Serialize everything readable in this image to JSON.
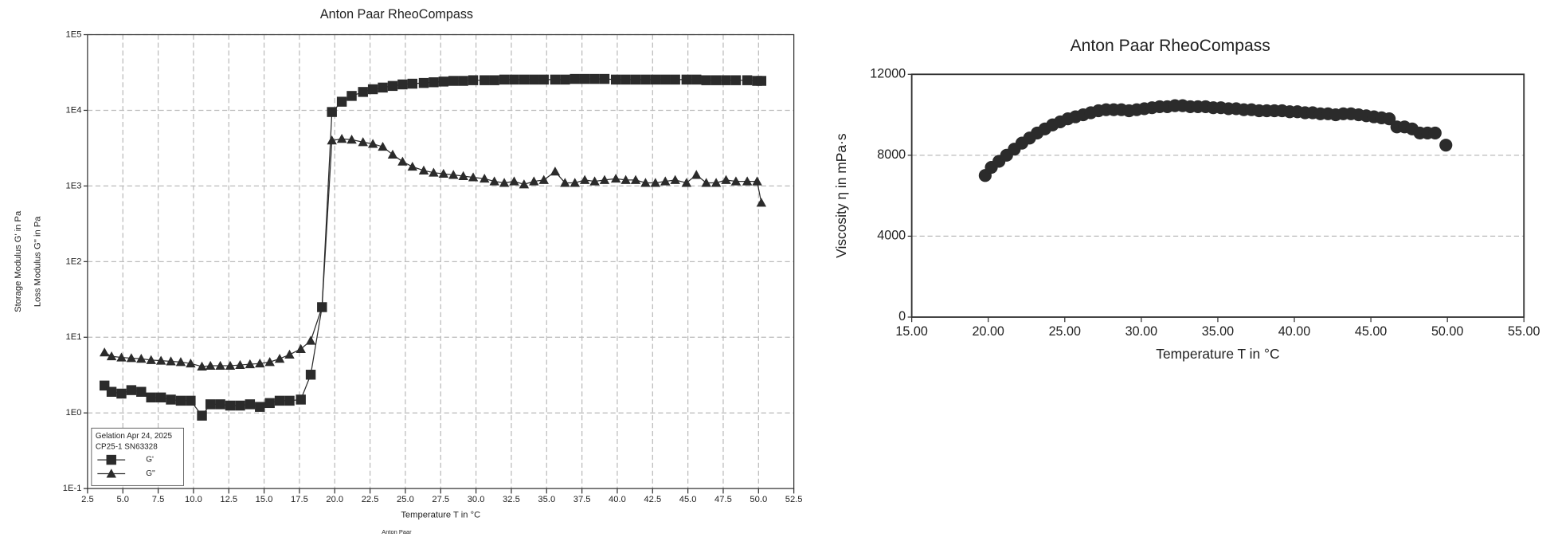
{
  "chart_data": [
    {
      "type": "line",
      "title": "Anton Paar RheoCompass",
      "xlabel": "Temperature T in °C",
      "ylabel": [
        "Storage Modulus G' in Pa",
        "Loss Modulus G'' in Pa"
      ],
      "footnote": "Anton Paar",
      "legend_title": [
        "Gelation Apr 24, 2025",
        "CP25-1 SN63328"
      ],
      "legend": "lower left",
      "grid": true,
      "yscale": "log",
      "xlim": [
        2.5,
        52.5
      ],
      "ylim": [
        0.1,
        100000
      ],
      "xticks": [
        2.5,
        {
          "value": 5,
          "label": "5.0"
        },
        7.5,
        {
          "value": 10,
          "label": "10.0"
        },
        12.5,
        {
          "value": 15,
          "label": "15.0"
        },
        17.5,
        {
          "value": 20,
          "label": "20.0"
        },
        22.5,
        {
          "value": 25,
          "label": "25.0"
        },
        27.5,
        {
          "value": 30,
          "label": "30.0"
        },
        32.5,
        {
          "value": 35,
          "label": "35.0"
        },
        37.5,
        {
          "value": 40,
          "label": "40.0"
        },
        42.5,
        {
          "value": 45,
          "label": "45.0"
        },
        47.5,
        {
          "value": 50,
          "label": "50.0"
        },
        52.5
      ],
      "yticks": [
        {
          "value": 0.1,
          "label": "1E-1"
        },
        {
          "value": 1,
          "label": "1E0"
        },
        {
          "value": 10,
          "label": "1E1"
        },
        {
          "value": 100,
          "label": "1E2"
        },
        {
          "value": 1000,
          "label": "1E3"
        },
        {
          "value": 10000,
          "label": "1E4"
        },
        {
          "value": 100000,
          "label": "1E5"
        }
      ],
      "x": [
        3.7,
        4.2,
        4.9,
        5.6,
        6.3,
        7.0,
        7.7,
        8.4,
        9.1,
        9.8,
        10.6,
        11.2,
        11.9,
        12.6,
        13.3,
        14.0,
        14.7,
        15.4,
        16.1,
        16.8,
        17.6,
        18.3,
        19.1,
        19.8,
        20.5,
        21.2,
        22.0,
        22.7,
        23.4,
        24.1,
        24.8,
        25.5,
        26.3,
        27.0,
        27.7,
        28.4,
        29.1,
        29.8,
        30.6,
        31.3,
        32.0,
        32.7,
        33.4,
        34.1,
        34.8,
        35.6,
        36.3,
        37.0,
        37.7,
        38.4,
        39.1,
        39.9,
        40.6,
        41.3,
        42.0,
        42.7,
        43.4,
        44.1,
        44.9,
        45.6,
        46.3,
        47.0,
        47.7,
        48.4,
        49.2,
        49.9,
        50.2
      ],
      "series": [
        {
          "name": "G'",
          "color": "#2b2b2b",
          "marker": "square",
          "values": [
            2.3,
            1.9,
            1.8,
            2.0,
            1.9,
            1.6,
            1.6,
            1.5,
            1.45,
            1.45,
            0.92,
            1.3,
            1.3,
            1.25,
            1.25,
            1.3,
            1.2,
            1.35,
            1.45,
            1.45,
            1.5,
            3.2,
            25,
            9500,
            13000,
            15500,
            17500,
            19000,
            20000,
            21000,
            22000,
            22500,
            23000,
            23500,
            24000,
            24500,
            24500,
            25000,
            25000,
            25000,
            25500,
            25500,
            25500,
            25500,
            25500,
            25500,
            25500,
            26000,
            26000,
            26000,
            26000,
            25500,
            25500,
            25500,
            25500,
            25500,
            25500,
            25500,
            25500,
            25500,
            25000,
            25000,
            25000,
            25000,
            25000,
            24500,
            24500
          ]
        },
        {
          "name": "G''",
          "color": "#2b2b2b",
          "marker": "triangle",
          "values": [
            6.3,
            5.6,
            5.4,
            5.3,
            5.2,
            5.0,
            4.9,
            4.8,
            4.7,
            4.5,
            4.1,
            4.2,
            4.2,
            4.2,
            4.3,
            4.4,
            4.5,
            4.7,
            5.2,
            5.9,
            7.0,
            9.0,
            25,
            4000,
            4200,
            4100,
            3800,
            3600,
            3300,
            2600,
            2100,
            1800,
            1600,
            1500,
            1450,
            1400,
            1350,
            1300,
            1250,
            1150,
            1100,
            1150,
            1050,
            1150,
            1200,
            1550,
            1100,
            1100,
            1200,
            1150,
            1200,
            1250,
            1200,
            1200,
            1100,
            1100,
            1150,
            1200,
            1100,
            1400,
            1100,
            1100,
            1200,
            1150,
            1150,
            1150,
            600
          ]
        }
      ]
    },
    {
      "type": "scatter",
      "title": "Anton Paar RheoCompass",
      "xlabel": "Temperature  T  in °C",
      "ylabel": "Viscosity  η  in mPa·s",
      "grid": true,
      "xlim": [
        15,
        55
      ],
      "ylim": [
        0,
        12000
      ],
      "xticks": [
        {
          "value": 15,
          "label": "15.00"
        },
        {
          "value": 20,
          "label": "20.00"
        },
        {
          "value": 25,
          "label": "25.00"
        },
        {
          "value": 30,
          "label": "30.00"
        },
        {
          "value": 35,
          "label": "35.00"
        },
        {
          "value": 40,
          "label": "40.00"
        },
        {
          "value": 45,
          "label": "45.00"
        },
        {
          "value": 50,
          "label": "50.00"
        },
        {
          "value": 55,
          "label": "55.00"
        }
      ],
      "yticks": [
        0,
        4000,
        8000,
        12000
      ],
      "x": [
        19.8,
        20.2,
        20.7,
        21.2,
        21.7,
        22.2,
        22.7,
        23.2,
        23.7,
        24.2,
        24.7,
        25.2,
        25.7,
        26.2,
        26.7,
        27.2,
        27.7,
        28.2,
        28.7,
        29.2,
        29.7,
        30.2,
        30.7,
        31.2,
        31.7,
        32.2,
        32.7,
        33.2,
        33.7,
        34.2,
        34.7,
        35.2,
        35.7,
        36.2,
        36.7,
        37.2,
        37.7,
        38.2,
        38.7,
        39.2,
        39.7,
        40.2,
        40.7,
        41.2,
        41.7,
        42.2,
        42.7,
        43.2,
        43.7,
        44.2,
        44.7,
        45.2,
        45.7,
        46.2,
        46.7,
        47.2,
        47.7,
        48.2,
        48.7,
        49.2,
        49.9
      ],
      "color": "#2b2b2b",
      "values": [
        7000,
        7400,
        7700,
        8000,
        8300,
        8600,
        8850,
        9100,
        9300,
        9500,
        9650,
        9800,
        9900,
        10000,
        10100,
        10200,
        10250,
        10250,
        10250,
        10200,
        10250,
        10300,
        10350,
        10400,
        10400,
        10450,
        10450,
        10400,
        10400,
        10400,
        10350,
        10350,
        10300,
        10300,
        10250,
        10250,
        10200,
        10200,
        10200,
        10200,
        10150,
        10150,
        10100,
        10100,
        10050,
        10050,
        10000,
        10050,
        10050,
        10000,
        9950,
        9900,
        9850,
        9800,
        9400,
        9400,
        9300,
        9100,
        9100,
        9100,
        8500
      ]
    }
  ]
}
